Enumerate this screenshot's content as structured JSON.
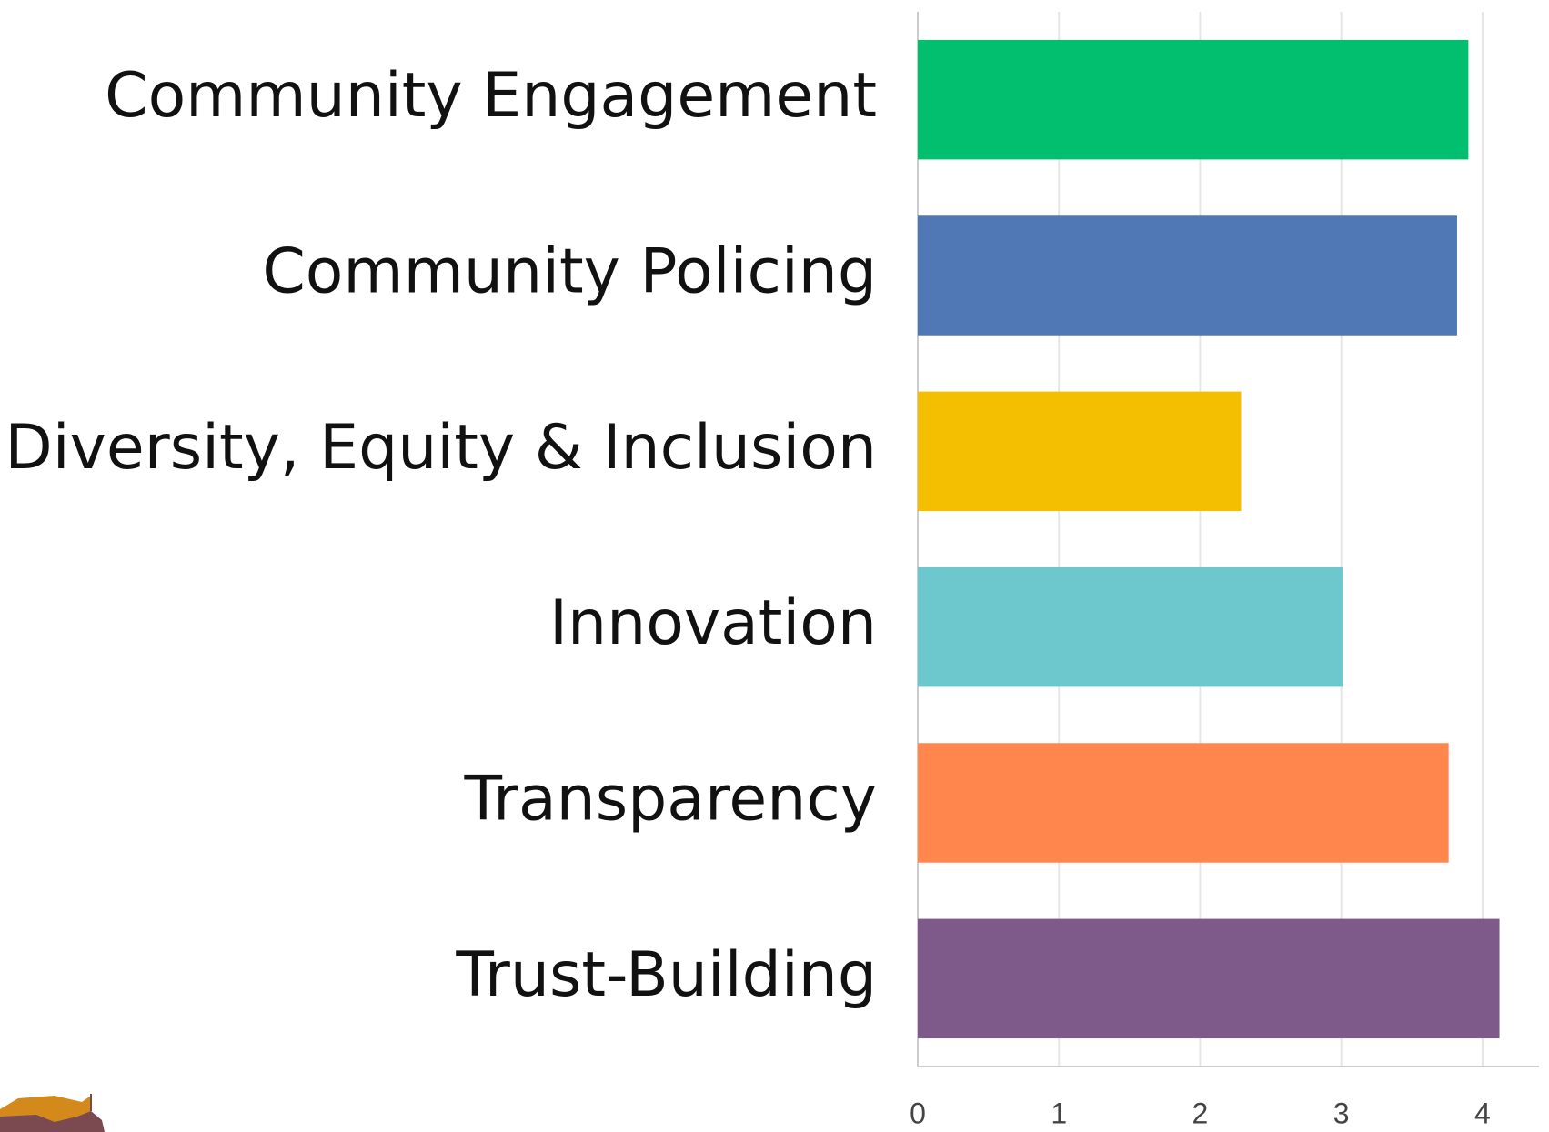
{
  "chart_data": {
    "type": "bar",
    "orientation": "horizontal",
    "categories": [
      "Community Engagement",
      "Community Policing",
      "Diversity, Equity & Inclusion",
      "Innovation",
      "Transparency",
      "Trust-Building"
    ],
    "values": [
      3.9,
      3.82,
      2.29,
      3.01,
      3.76,
      4.12
    ],
    "colors": [
      "#02bf6f",
      "#5078b4",
      "#f4bf00",
      "#6cc8cd",
      "#ff874d",
      "#7d5a8a"
    ],
    "xlim": [
      0,
      4.4
    ],
    "xticks": [
      0,
      1,
      2,
      3,
      4
    ],
    "grid": true
  }
}
